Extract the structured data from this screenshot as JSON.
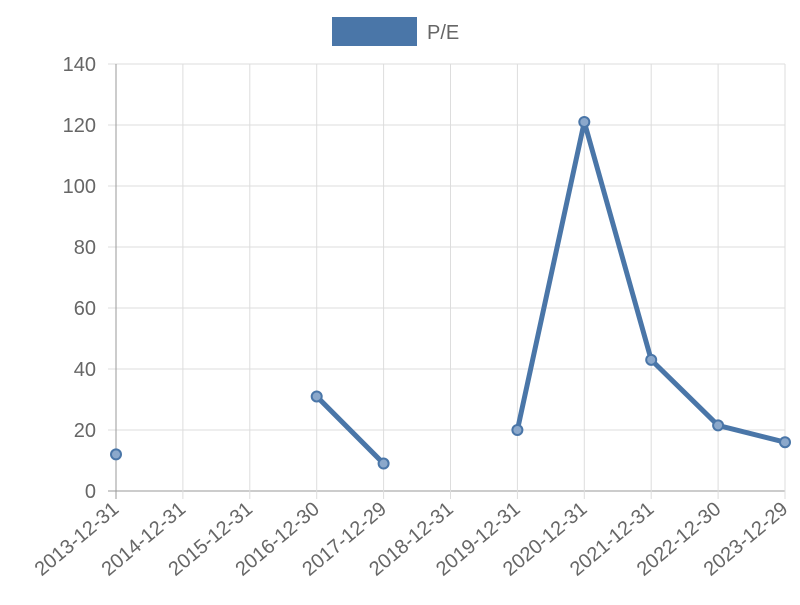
{
  "chart_data": {
    "type": "line",
    "categories": [
      "2013-12-31",
      "2014-12-31",
      "2015-12-31",
      "2016-12-30",
      "2017-12-29",
      "2018-12-31",
      "2019-12-31",
      "2020-12-31",
      "2021-12-31",
      "2022-12-30",
      "2023-12-29"
    ],
    "series": [
      {
        "name": "P/E",
        "color": "#4a76a8",
        "values": [
          12,
          null,
          null,
          31,
          9,
          null,
          20,
          121,
          43,
          21.5,
          16
        ]
      }
    ],
    "ylim": [
      0,
      140
    ],
    "yticks": [
      0,
      20,
      40,
      60,
      80,
      100,
      120,
      140
    ],
    "grid": true,
    "legend": "top"
  }
}
